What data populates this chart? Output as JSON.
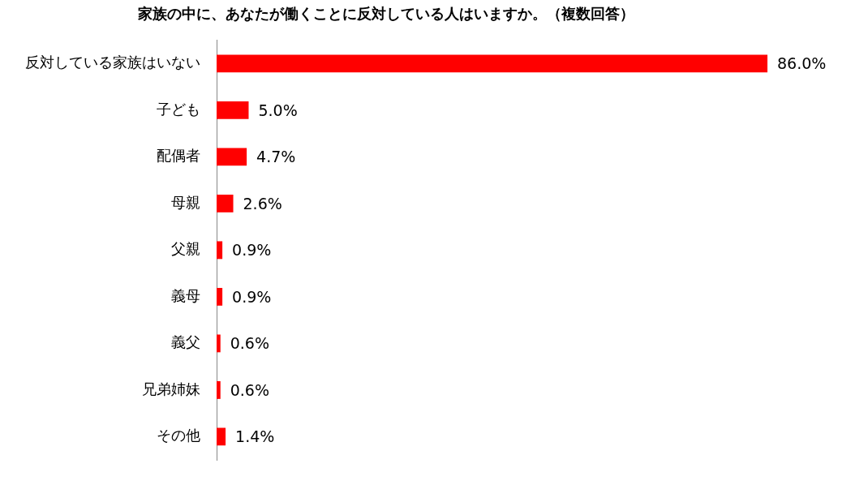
{
  "chart_data": {
    "type": "bar",
    "orientation": "horizontal",
    "title": "家族の中に、あなたが働くことに反対している人はいますか。（複数回答）",
    "categories": [
      "反対している家族はいない",
      "子ども",
      "配偶者",
      "母親",
      "父親",
      "義母",
      "義父",
      "兄弟姉妹",
      "その他"
    ],
    "values": [
      86.0,
      5.0,
      4.7,
      2.6,
      0.9,
      0.9,
      0.6,
      0.6,
      1.4
    ],
    "value_labels": [
      "86.0%",
      "5.0%",
      "4.7%",
      "2.6%",
      "0.9%",
      "0.9%",
      "0.6%",
      "0.6%",
      "1.4%"
    ],
    "color": "#ff0000",
    "xlim": [
      0,
      86
    ],
    "tick_labels": "y",
    "grid": false,
    "legend": false
  }
}
